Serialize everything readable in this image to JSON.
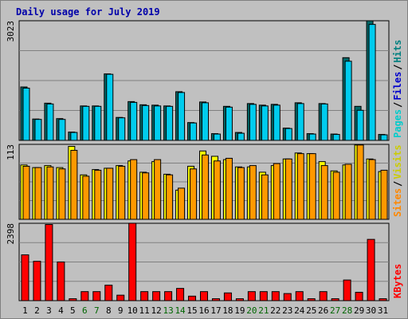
{
  "chart_data": {
    "type": "bar",
    "title": "Daily usage for July 2019",
    "categories": [
      "1",
      "2",
      "3",
      "4",
      "5",
      "6",
      "7",
      "8",
      "9",
      "10",
      "11",
      "12",
      "13",
      "14",
      "15",
      "16",
      "17",
      "18",
      "19",
      "20",
      "21",
      "22",
      "23",
      "24",
      "25",
      "26",
      "27",
      "28",
      "29",
      "30",
      "31"
    ],
    "weekend_days": [
      "6",
      "7",
      "13",
      "14",
      "20",
      "21",
      "27",
      "28"
    ],
    "panels": [
      {
        "id": "top",
        "max_label": "3023",
        "ylim": [
          0,
          3023
        ],
        "legend": [
          {
            "text": "Hits",
            "color": "#008080"
          },
          {
            "text": "Files",
            "color": "#0000cc"
          },
          {
            "text": "Pages",
            "color": "#00cccc"
          }
        ],
        "series": [
          {
            "name": "Hits",
            "color": "#006666",
            "values": [
              1350,
              540,
              940,
              550,
              210,
              870,
              870,
              1680,
              580,
              980,
              900,
              890,
              870,
              1230,
              450,
              970,
              170,
              860,
              200,
              930,
              890,
              910,
              310,
              950,
              170,
              930,
              160,
              2090,
              860,
              3023,
              150
            ]
          },
          {
            "name": "Files",
            "color": "#00ccee",
            "values": [
              1320,
              530,
              920,
              530,
              200,
              860,
              860,
              1670,
              570,
              960,
              880,
              870,
              860,
              1210,
              440,
              950,
              160,
              840,
              180,
              910,
              870,
              890,
              300,
              930,
              160,
              920,
              150,
              2000,
              760,
              2930,
              140
            ]
          }
        ]
      },
      {
        "id": "middle",
        "max_label": "113",
        "ylim": [
          0,
          113
        ],
        "legend": [
          {
            "text": "Visits",
            "color": "#cccc00"
          },
          {
            "text": "Sites",
            "color": "#ff8800"
          }
        ],
        "series": [
          {
            "name": "Visits",
            "color": "#ffff00",
            "values": [
              82,
              78,
              81,
              78,
              110,
              67,
              75,
              77,
              81,
              88,
              71,
              87,
              68,
              44,
              80,
              103,
              95,
              90,
              79,
              79,
              71,
              81,
              91,
              100,
              99,
              87,
              73,
              82,
              112,
              91,
              72
            ]
          },
          {
            "name": "Sites",
            "color": "#ff9900",
            "values": [
              80,
              78,
              79,
              76,
              104,
              65,
              74,
              77,
              80,
              90,
              70,
              90,
              67,
              47,
              76,
              97,
              88,
              92,
              78,
              81,
              67,
              84,
              91,
              99,
              99,
              81,
              71,
              83,
              112,
              90,
              74
            ]
          }
        ]
      },
      {
        "id": "bottom",
        "max_label": "2398",
        "ylim": [
          0,
          2398
        ],
        "legend": [
          {
            "text": "KBytes",
            "color": "#ff0000"
          }
        ],
        "series": [
          {
            "name": "KBytes",
            "color": "#ff0000",
            "values": [
              1420,
              1220,
              2360,
              1200,
              60,
              280,
              280,
              480,
              170,
              2400,
              280,
              280,
              280,
              380,
              140,
              280,
              60,
              240,
              60,
              280,
              280,
              280,
              220,
              280,
              60,
              280,
              60,
              640,
              260,
              1900,
              60
            ]
          }
        ]
      }
    ]
  }
}
